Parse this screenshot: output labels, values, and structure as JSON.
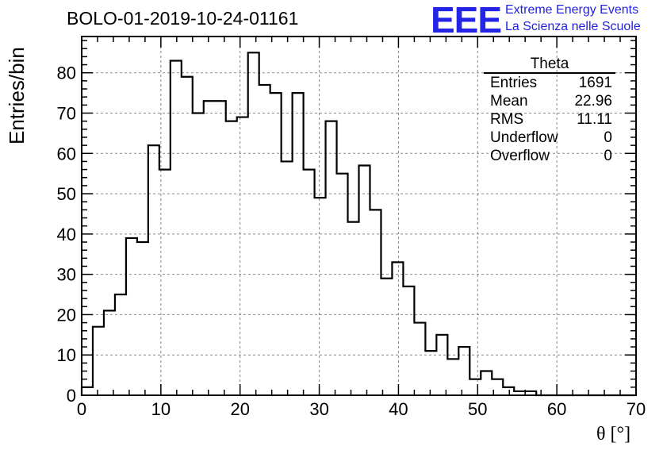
{
  "header": {
    "title": "BOLO-01-2019-10-24-01161",
    "logo_text": "EEE",
    "logo_line1": "Extreme Energy Events",
    "logo_line2": "La Scienza nelle Scuole"
  },
  "stats_box": {
    "title": "Theta",
    "rows": [
      {
        "label": "Entries",
        "value": "1691"
      },
      {
        "label": "Mean",
        "value": "22.96"
      },
      {
        "label": "RMS",
        "value": "11.11"
      },
      {
        "label": "Underflow",
        "value": "0"
      },
      {
        "label": "Overflow",
        "value": "0"
      }
    ]
  },
  "colors": {
    "line": "#000000",
    "grid": "#888888",
    "logo": "#2424e6"
  },
  "chart_data": {
    "type": "bar",
    "style": "step-histogram",
    "title": "BOLO-01-2019-10-24-01161",
    "xlabel": "θ [°]",
    "ylabel": "Entries/bin",
    "xlim": [
      0,
      70
    ],
    "ylim": [
      0,
      89
    ],
    "bin_width": 1.4,
    "x_ticks": [
      0,
      10,
      20,
      30,
      40,
      50,
      60,
      70
    ],
    "y_ticks": [
      0,
      10,
      20,
      30,
      40,
      50,
      60,
      70,
      80
    ],
    "grid": true,
    "bin_edges_start": 0,
    "values": [
      2,
      17,
      21,
      25,
      39,
      38,
      62,
      56,
      83,
      79,
      70,
      73,
      73,
      68,
      69,
      85,
      77,
      75,
      58,
      75,
      56,
      49,
      68,
      55,
      43,
      57,
      46,
      29,
      33,
      27,
      18,
      11,
      15,
      9,
      12,
      4,
      6,
      4,
      2,
      1,
      1,
      0,
      0,
      0,
      0,
      0,
      0,
      0,
      0,
      0
    ]
  }
}
